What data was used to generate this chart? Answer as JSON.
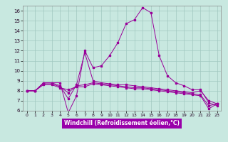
{
  "xlabel": "Windchill (Refroidissement éolien,°C)",
  "bg_color": "#c8e8e0",
  "grid_color": "#a0c8c0",
  "line_color": "#990099",
  "xlabel_bg": "#9900aa",
  "xlabel_fg": "#ffffff",
  "ylim": [
    6,
    16.5
  ],
  "xlim": [
    -0.5,
    23.5
  ],
  "yticks": [
    6,
    7,
    8,
    9,
    10,
    11,
    12,
    13,
    14,
    15,
    16
  ],
  "xticks": [
    0,
    1,
    2,
    3,
    4,
    5,
    6,
    7,
    8,
    9,
    10,
    11,
    12,
    13,
    14,
    15,
    16,
    17,
    18,
    19,
    20,
    21,
    22,
    23
  ],
  "s1_x": [
    0,
    1,
    2,
    3,
    4,
    5,
    6,
    7,
    8,
    9,
    10,
    11,
    12,
    13,
    14,
    15,
    16,
    17,
    18,
    19,
    20,
    21,
    22,
    23
  ],
  "s1_y": [
    8.0,
    8.0,
    8.8,
    8.8,
    8.8,
    5.8,
    7.5,
    12.0,
    10.3,
    10.5,
    11.5,
    12.8,
    14.7,
    15.1,
    16.3,
    15.8,
    11.5,
    9.5,
    8.8,
    8.5,
    8.1,
    8.1,
    6.8,
    6.5
  ],
  "s2_x": [
    0,
    1,
    2,
    3,
    4,
    5,
    6,
    7,
    8,
    9,
    10,
    11,
    12,
    13,
    14,
    15,
    16,
    17,
    18,
    19,
    20,
    21,
    22,
    23
  ],
  "s2_y": [
    8.0,
    8.0,
    8.8,
    8.8,
    8.5,
    7.2,
    8.6,
    11.8,
    9.0,
    8.8,
    8.7,
    8.6,
    8.6,
    8.5,
    8.4,
    8.3,
    8.2,
    8.1,
    8.0,
    7.9,
    7.8,
    8.0,
    7.0,
    6.7
  ],
  "s3_x": [
    0,
    1,
    2,
    3,
    4,
    5,
    6,
    7,
    8,
    9,
    10,
    11,
    12,
    13,
    14,
    15,
    16,
    17,
    18,
    19,
    20,
    21,
    22,
    23
  ],
  "s3_y": [
    8.0,
    8.0,
    8.7,
    8.7,
    8.4,
    7.8,
    8.5,
    8.6,
    8.8,
    8.7,
    8.6,
    8.5,
    8.4,
    8.3,
    8.3,
    8.2,
    8.1,
    8.0,
    7.9,
    7.8,
    7.7,
    7.6,
    6.5,
    6.7
  ],
  "s4_x": [
    0,
    1,
    2,
    3,
    4,
    5,
    6,
    7,
    8,
    9,
    10,
    11,
    12,
    13,
    14,
    15,
    16,
    17,
    18,
    19,
    20,
    21,
    22,
    23
  ],
  "s4_y": [
    8.0,
    8.0,
    8.6,
    8.6,
    8.3,
    8.1,
    8.4,
    8.4,
    8.7,
    8.6,
    8.5,
    8.4,
    8.3,
    8.2,
    8.2,
    8.1,
    8.0,
    7.9,
    7.8,
    7.7,
    7.6,
    7.5,
    6.2,
    6.7
  ]
}
